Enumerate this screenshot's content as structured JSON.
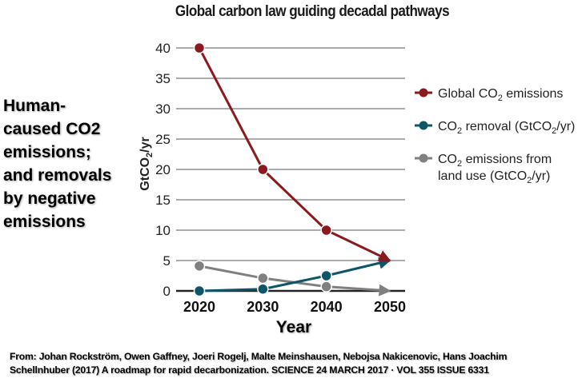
{
  "side_note": [
    "Human-",
    "caused CO2",
    "emissions;",
    "and removals",
    "by negative",
    "emissions"
  ],
  "source": [
    "From: Johan Rockström, Owen Gaffney, Joeri Rogelj, Malte Meinshausen, Nebojsa Nakicenovic, Hans Joachim",
    "Schellnhuber (2017) A roadmap for rapid decarbonization.  SCIENCE  24 MARCH 2017 · VOL 355 ISSUE 6331"
  ],
  "chart_data": {
    "type": "line",
    "title": "Global carbon law guiding decadal pathways",
    "xlabel": "Year",
    "ylabel": "GtCO2/yr",
    "x": [
      2020,
      2030,
      2040,
      2050
    ],
    "x_tick_labels": [
      "2020",
      "2030",
      "2040",
      "2050"
    ],
    "ylim": [
      0,
      40
    ],
    "y_ticks": [
      0,
      5,
      10,
      15,
      20,
      25,
      30,
      35,
      40
    ],
    "grid": true,
    "legend_position": "right",
    "series": [
      {
        "name": "Global CO2 emissions",
        "legend_lines": [
          "Global CO₂ emissions"
        ],
        "color": "#8b1a1e",
        "values": [
          40,
          20,
          10,
          5
        ]
      },
      {
        "name": "CO2 removal (GtCO2/yr)",
        "legend_lines": [
          "CO₂ removal (GtCO₂/yr)"
        ],
        "color": "#0e5667",
        "values": [
          0,
          0.3,
          2.5,
          5
        ]
      },
      {
        "name": "CO2 emissions from land use (GtCO2/yr)",
        "legend_lines": [
          "CO₂ emissions from",
          "land use (GtCO₂/yr)"
        ],
        "color": "#808080",
        "values": [
          4.1,
          2.1,
          0.7,
          0
        ]
      }
    ]
  }
}
